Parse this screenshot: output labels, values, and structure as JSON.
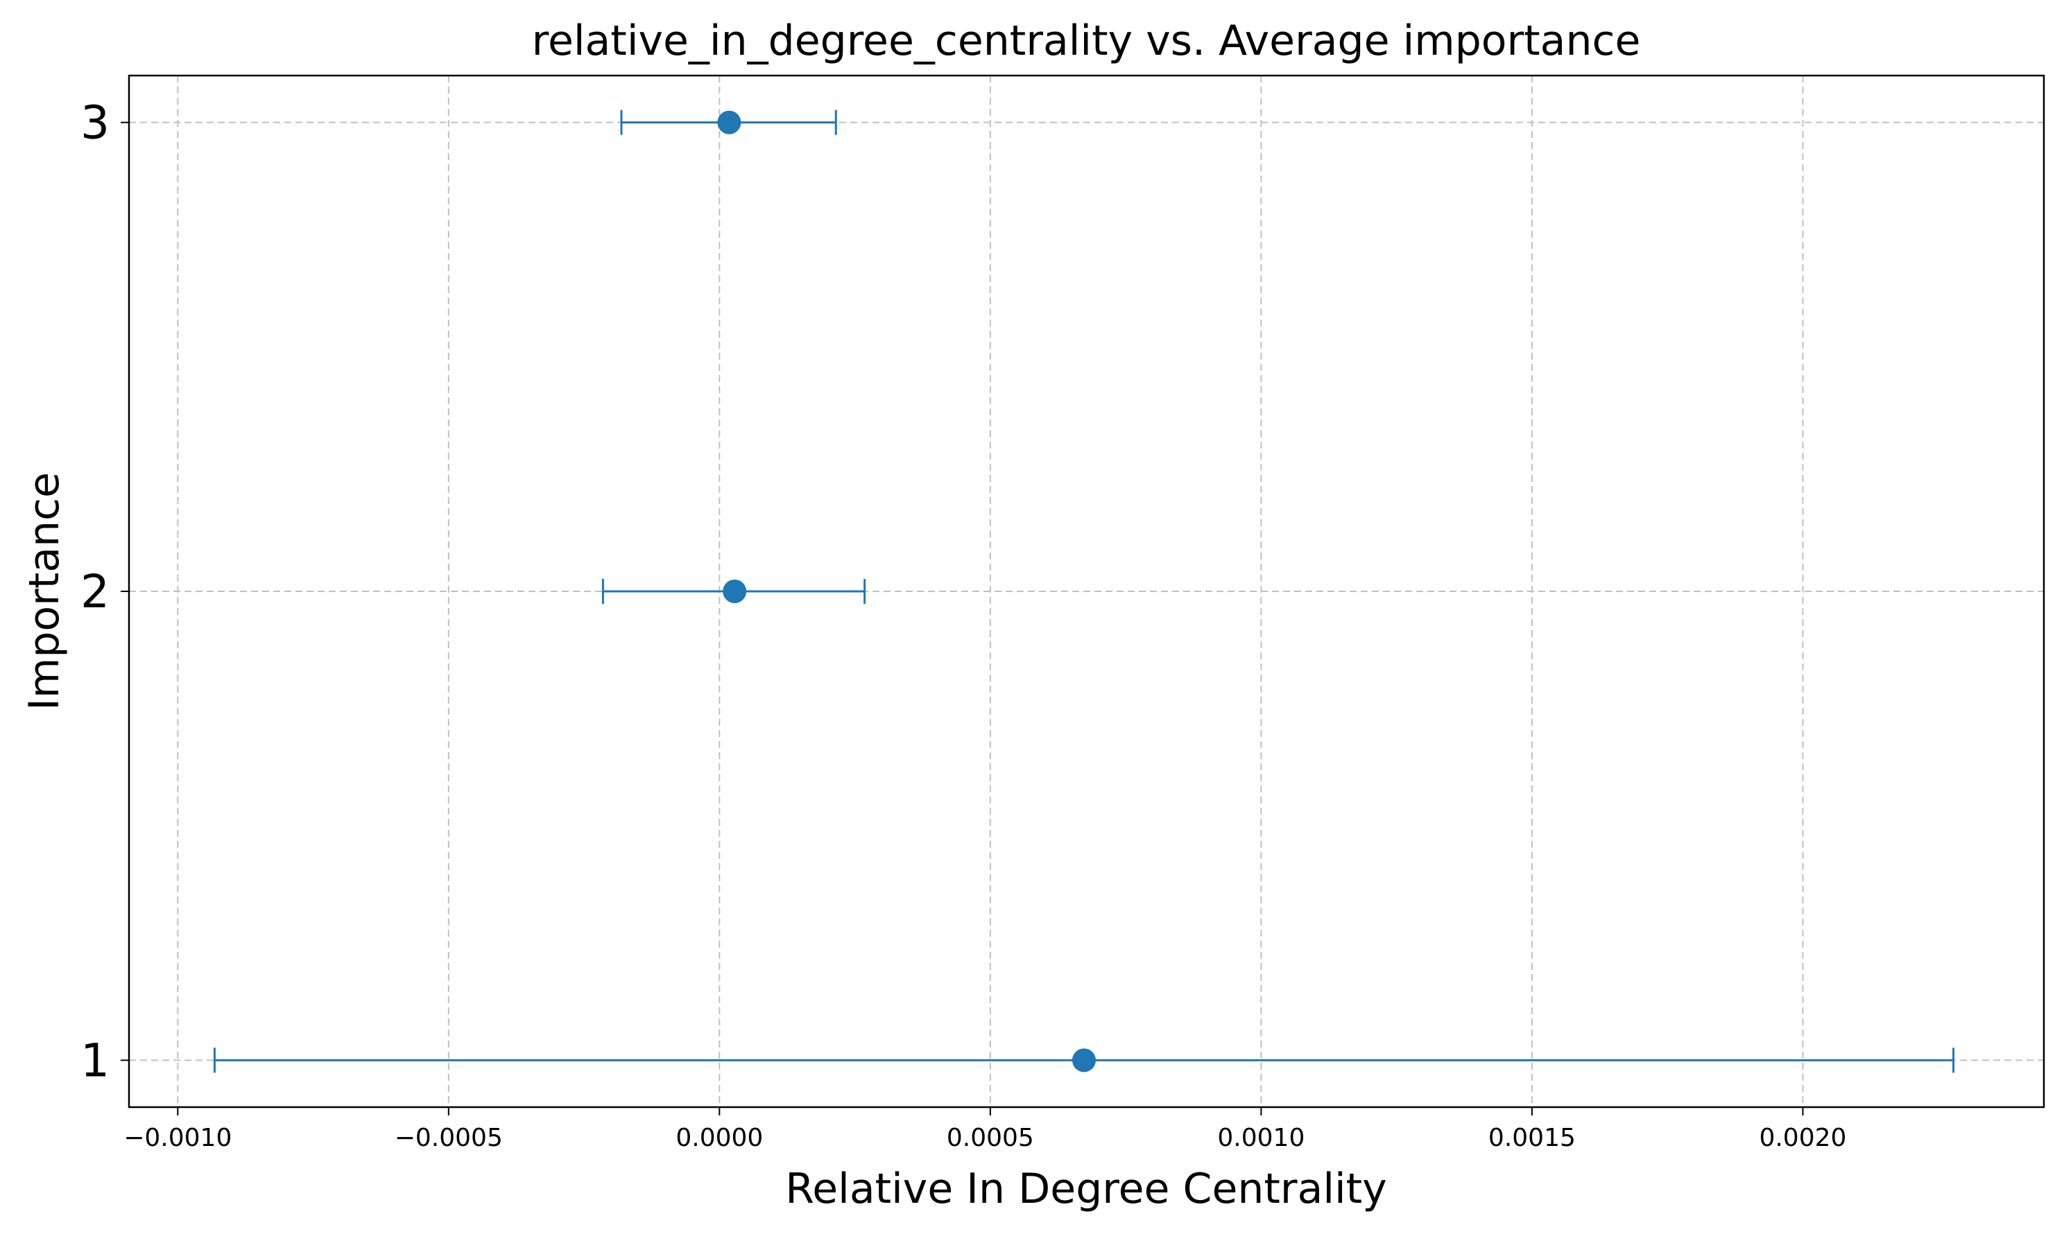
{
  "chart_data": {
    "type": "scatter",
    "title": "relative_in_degree_centrality vs. Average importance",
    "xlabel": "Relative In Degree Centrality",
    "ylabel": "Importance",
    "xlim": [
      -0.00109,
      0.002445
    ],
    "ylim": [
      0.9,
      3.1
    ],
    "xticks": [
      -0.001,
      -0.0005,
      0.0,
      0.0005,
      0.001,
      0.0015,
      0.002
    ],
    "xtick_labels": [
      "−0.0010",
      "−0.0005",
      "0.0000",
      "0.0005",
      "0.0010",
      "0.0015",
      "0.0020"
    ],
    "yticks": [
      1,
      2,
      3
    ],
    "ytick_labels": [
      "1",
      "2",
      "3"
    ],
    "grid": true,
    "color": "#1f77b4",
    "points": [
      {
        "y": 3,
        "x": 1.8e-05,
        "xerr_low": -0.000181,
        "xerr_high": 0.000215
      },
      {
        "y": 2,
        "x": 2.8e-05,
        "xerr_low": -0.000215,
        "xerr_high": 0.000268
      },
      {
        "y": 1,
        "x": 0.000673,
        "xerr_low": -0.000932,
        "xerr_high": 0.002278
      }
    ]
  }
}
